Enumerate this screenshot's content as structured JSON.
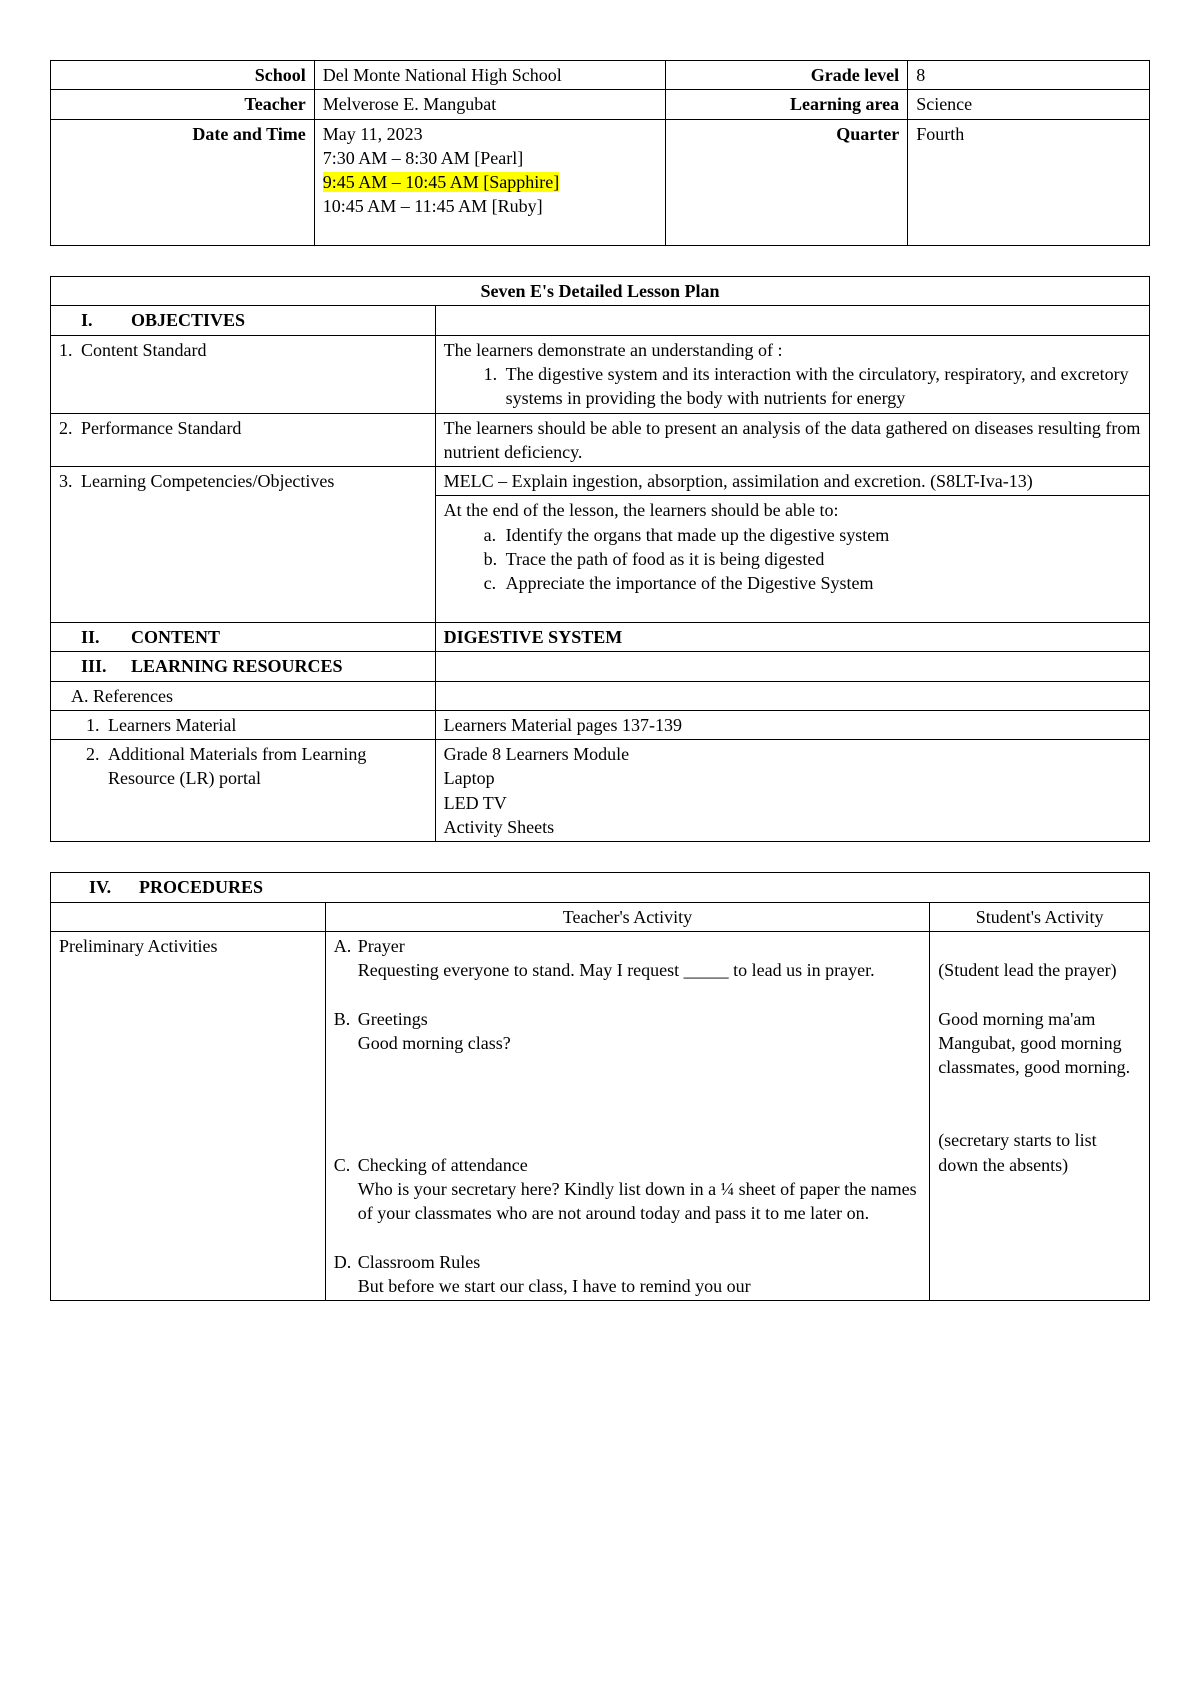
{
  "header": {
    "school_label": "School",
    "school": "Del Monte National High School",
    "grade_label": "Grade level",
    "grade": "8",
    "teacher_label": "Teacher",
    "teacher": "Melverose E. Mangubat",
    "area_label": "Learning area",
    "area": "Science",
    "datetime_label": "Date and Time",
    "date": "May 11, 2023",
    "slot1": "7:30 AM – 8:30 AM [Pearl]",
    "slot2": "9:45 AM – 10:45 AM [Sapphire]",
    "slot3": "10:45 AM – 11:45 AM [Ruby]",
    "quarter_label": "Quarter",
    "quarter": "Fourth"
  },
  "plan": {
    "title": "Seven E's Detailed Lesson Plan",
    "sec1_roman": "I.",
    "sec1_name": "OBJECTIVES",
    "row1": {
      "num": "1.",
      "label": "Content Standard",
      "intro": "The learners demonstrate an understanding of :",
      "item_num": "1.",
      "item_text": "The digestive system and its interaction with the circulatory, respiratory, and excretory systems in providing the body with nutrients for energy"
    },
    "row2": {
      "num": "2.",
      "label": "Performance Standard",
      "text": "The learners should be able to present an analysis of the data gathered on diseases resulting from nutrient deficiency."
    },
    "row3": {
      "num": "3.",
      "label": "Learning Competencies/Objectives",
      "melc": "MELC – Explain ingestion, absorption, assimilation and excretion. (S8LT-Iva-13)",
      "intro": "At the end of the lesson, the learners should be able to:",
      "a_m": "a.",
      "a": "Identify the organs that made up the digestive system",
      "b_m": "b.",
      "b": "Trace the path of food as it is being digested",
      "c_m": "c.",
      "c": "Appreciate the importance of the Digestive System"
    },
    "sec2_roman": "II.",
    "sec2_name": "CONTENT",
    "sec2_val": "DIGESTIVE SYSTEM",
    "sec3_roman": "III.",
    "sec3_name": "LEARNING RESOURCES",
    "refs_m": "A.",
    "refs": "References",
    "lm_m": "1.",
    "lm_label": "Learners Material",
    "lm_val": "Learners Material pages 137-139",
    "addl_m": "2.",
    "addl_label": "Additional Materials from Learning Resource (LR) portal",
    "addl_1": "Grade 8 Learners Module",
    "addl_2": "Laptop",
    "addl_3": "LED TV",
    "addl_4": "Activity Sheets"
  },
  "proc": {
    "sec4_roman": "IV.",
    "sec4_name": "PROCEDURES",
    "col2": "Teacher's Activity",
    "col3": "Student's Activity",
    "prelim": "Preliminary Activities",
    "a_m": "A.",
    "a_title": "Prayer",
    "a_text": "Requesting everyone to stand. May I request _____ to lead us in prayer.",
    "a_resp": "(Student lead the prayer)",
    "b_m": "B.",
    "b_title": "Greetings",
    "b_text": "Good morning class?",
    "b_resp": "Good morning ma'am Mangubat, good morning classmates, good morning.",
    "c_m": "C.",
    "c_title": "Checking of attendance",
    "c_text": "Who is your secretary here? Kindly list down in a ¼ sheet of paper the names of your classmates who are not around today and pass it to me later on.",
    "c_resp": "(secretary starts to list down the absents)",
    "d_m": "D.",
    "d_title": "Classroom Rules",
    "d_text": "But before we start our class, I have to remind you our"
  }
}
